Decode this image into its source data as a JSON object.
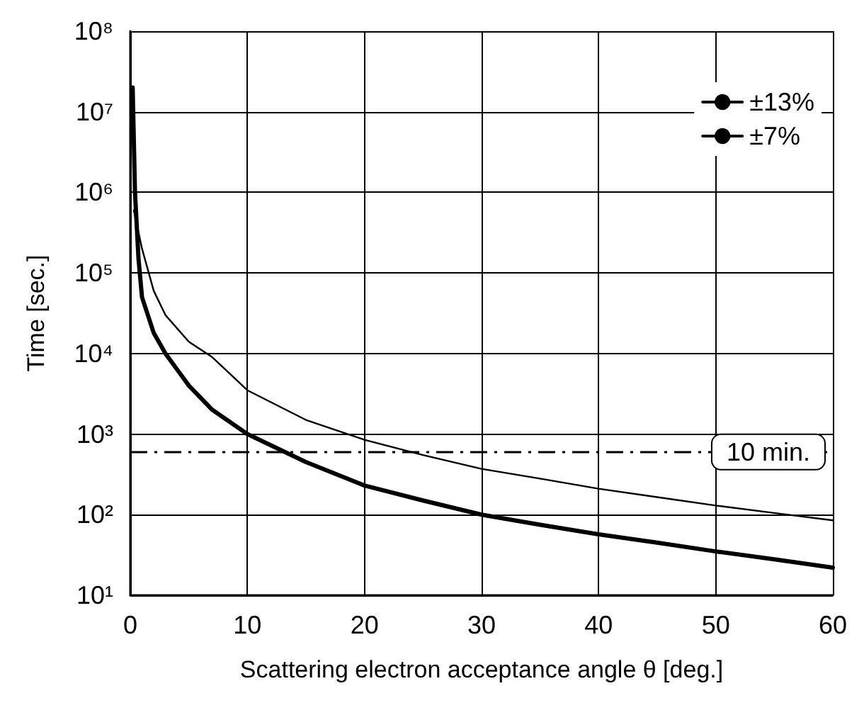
{
  "chart_data": {
    "type": "line",
    "xlabel": "Scattering electron acceptance angle θ [deg.]",
    "ylabel": "Time [sec.]",
    "series": [
      {
        "name": "±13%",
        "color": "#000000",
        "x": [
          0.2,
          0.4,
          0.7,
          1,
          2,
          3,
          5,
          7,
          10,
          15,
          20,
          25,
          30,
          35,
          40,
          45,
          50,
          55,
          60
        ],
        "values": [
          20000000,
          1000000,
          150000,
          50000,
          18000,
          10000,
          4000,
          2000,
          1000,
          450,
          230,
          150,
          100,
          75,
          57,
          45,
          35,
          28,
          22
        ]
      },
      {
        "name": "±7%",
        "color": "#000000",
        "x": [
          0.3,
          1,
          2,
          3,
          5,
          7,
          10,
          15,
          20,
          25,
          30,
          35,
          40,
          45,
          50,
          55,
          60
        ],
        "values": [
          600000,
          200000,
          60000,
          30000,
          14000,
          9000,
          3500,
          1500,
          850,
          550,
          370,
          280,
          210,
          165,
          130,
          105,
          85
        ]
      }
    ],
    "xlim": [
      0,
      60
    ],
    "xticks": [
      0,
      10,
      20,
      30,
      40,
      50,
      60
    ],
    "ylim": [
      10,
      100000000
    ],
    "yticks": [
      {
        "value": 10,
        "label": "10¹"
      },
      {
        "value": 100,
        "label": "10²"
      },
      {
        "value": 1000,
        "label": "10³"
      },
      {
        "value": 10000,
        "label": "10⁴"
      },
      {
        "value": 100000,
        "label": "10⁵"
      },
      {
        "value": 1000000,
        "label": "10⁶"
      },
      {
        "value": 10000000,
        "label": "10⁷"
      },
      {
        "value": 100000000,
        "label": "10⁸"
      }
    ],
    "log": "y",
    "grid": true,
    "legend": "top right",
    "marker": "none",
    "ref_lines": [
      {
        "axis": "y",
        "value": 600,
        "label": "10 min.",
        "line_style": "dashdot",
        "color": "#000000"
      }
    ]
  }
}
